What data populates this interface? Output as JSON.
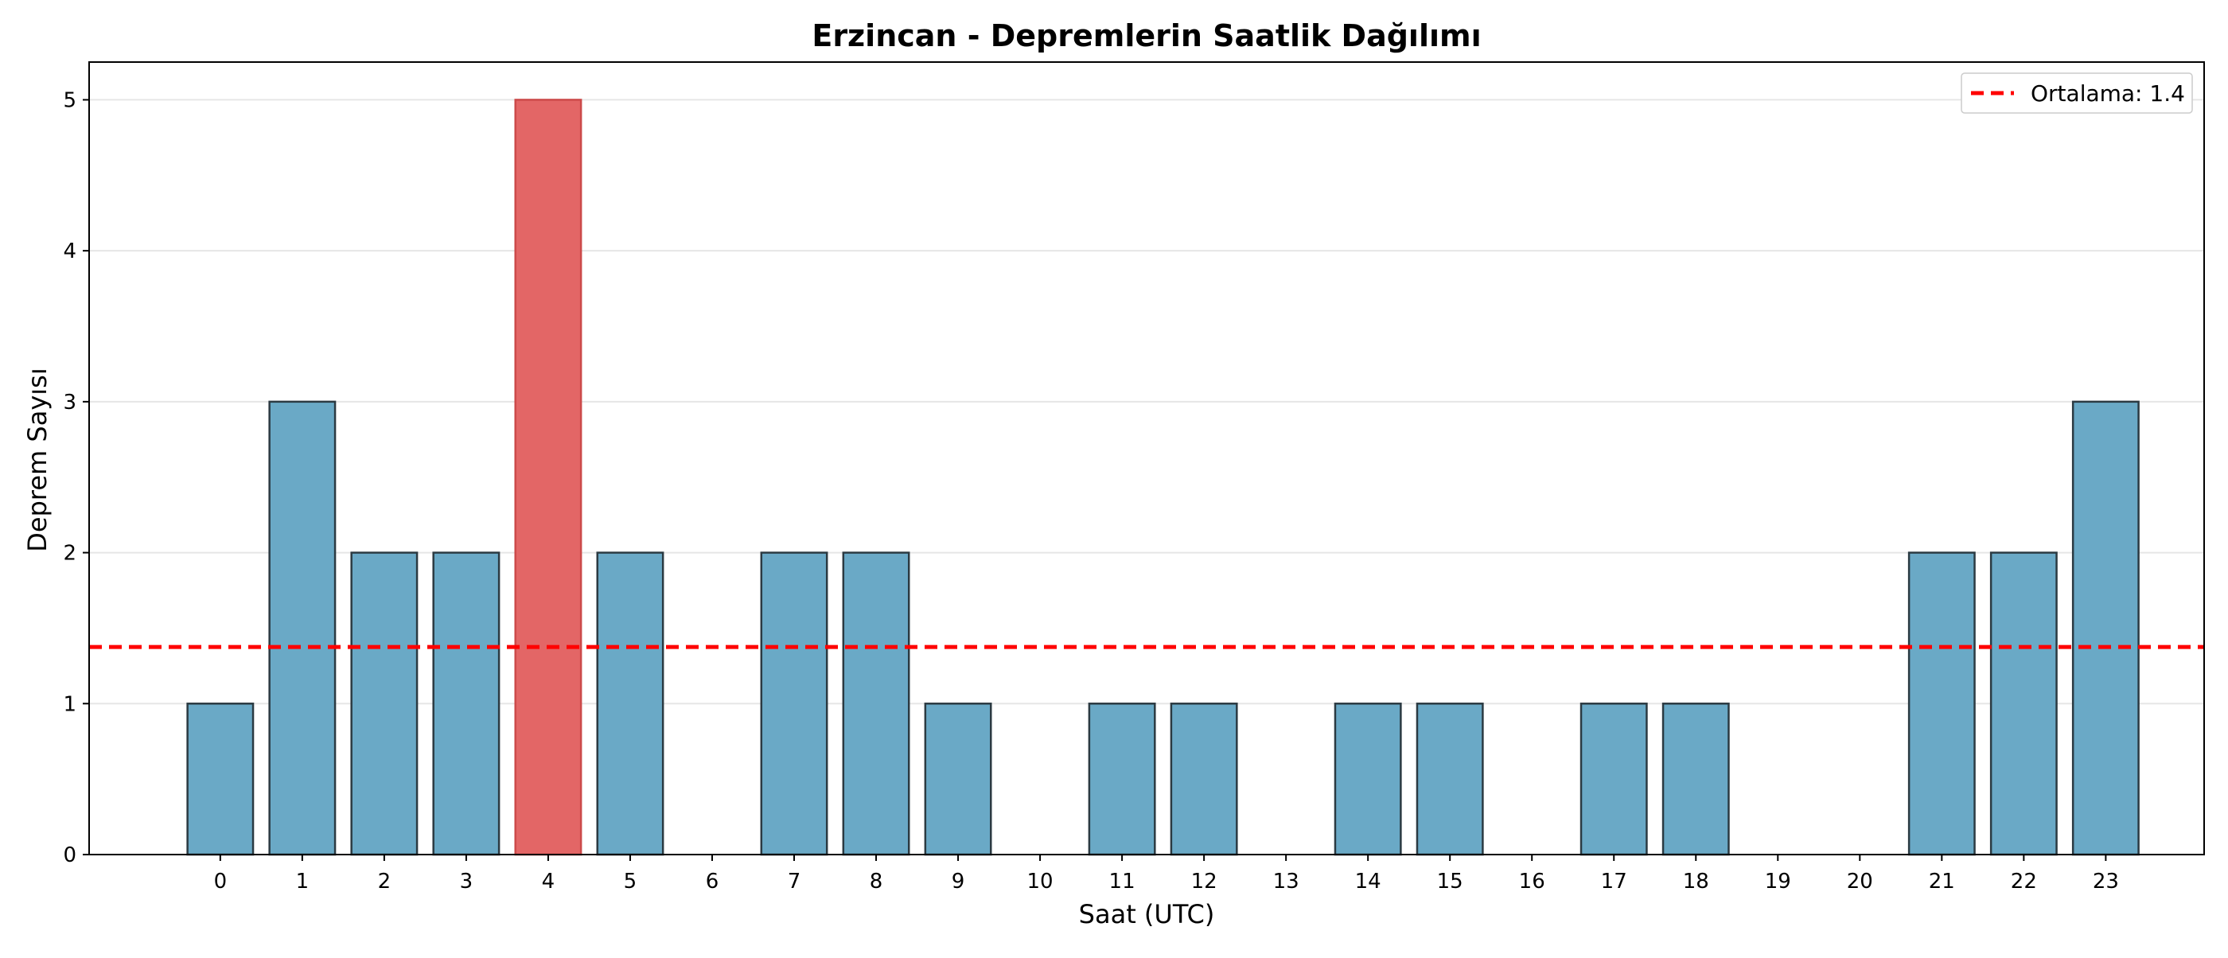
{
  "chart_data": {
    "type": "bar",
    "title": "Erzincan - Depremlerin Saatlik Dağılımı",
    "xlabel": "Saat (UTC)",
    "ylabel": "Deprem Sayısı",
    "categories": [
      "0",
      "1",
      "2",
      "3",
      "4",
      "5",
      "6",
      "7",
      "8",
      "9",
      "10",
      "11",
      "12",
      "13",
      "14",
      "15",
      "16",
      "17",
      "18",
      "19",
      "20",
      "21",
      "22",
      "23"
    ],
    "values": [
      1,
      3,
      2,
      2,
      5,
      2,
      0,
      2,
      2,
      1,
      0,
      1,
      1,
      0,
      1,
      1,
      0,
      1,
      1,
      0,
      0,
      2,
      2,
      3
    ],
    "highlight_category": "4",
    "mean_line": {
      "value": 1.375,
      "label": "Ortalama: 1.4",
      "style": "dashed",
      "color": "#ff0000"
    },
    "ylim": [
      0,
      5.25
    ],
    "yticks": [
      "0",
      "1",
      "2",
      "3",
      "4",
      "5"
    ],
    "grid": "horizontal",
    "legend_position": "top-right",
    "colors": {
      "bar": "#6aa9c6",
      "bar_highlight": "#e36666",
      "bar_edge": "#2b3a42",
      "bar_highlight_edge": "#cc4a4a",
      "grid": "#e6e6e6",
      "axis": "#000000"
    }
  }
}
